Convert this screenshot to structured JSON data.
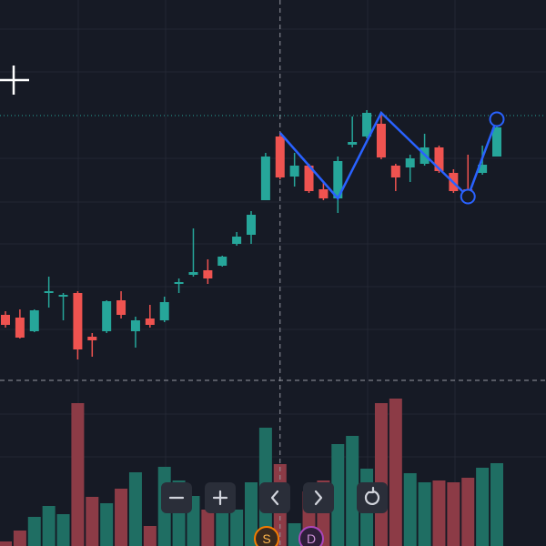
{
  "chart_data": {
    "type": "candlestick",
    "open": [
      254,
      251,
      236,
      278,
      274,
      278,
      230,
      236,
      270,
      236,
      250,
      248,
      288,
      298,
      303,
      308,
      332,
      342,
      380,
      450,
      406,
      418,
      392,
      382,
      441,
      450,
      464,
      418,
      416,
      420,
      438,
      410,
      392,
      410,
      428
    ],
    "high": [
      258,
      260,
      260,
      296,
      278,
      280,
      234,
      270,
      280,
      252,
      265,
      274,
      294,
      349,
      315,
      319,
      345,
      368,
      432,
      454,
      432,
      420,
      400,
      428,
      472,
      479,
      474,
      420,
      430,
      453,
      440,
      414,
      430,
      440,
      470
    ],
    "low": [
      240,
      228,
      235,
      262,
      248,
      205,
      208,
      234,
      250,
      218,
      240,
      246,
      278,
      296,
      288,
      307,
      330,
      332,
      380,
      403,
      395,
      388,
      380,
      366,
      438,
      448,
      425,
      390,
      400,
      418,
      410,
      388,
      382,
      408,
      428
    ],
    "close": [
      243,
      229,
      259,
      280,
      276,
      216,
      226,
      269,
      254,
      248,
      243,
      268,
      290,
      301,
      294,
      318,
      340,
      364,
      428,
      405,
      418,
      390,
      382,
      423,
      444,
      476,
      427,
      405,
      426,
      438,
      412,
      390,
      386,
      419,
      460
    ],
    "volume": [
      5,
      17,
      32,
      44,
      35,
      157,
      54,
      47,
      63,
      81,
      22,
      87,
      72,
      55,
      40,
      60,
      40,
      70,
      130,
      90,
      25,
      60,
      72,
      112,
      121,
      85,
      157,
      162,
      80,
      70,
      72,
      70,
      75,
      86,
      91
    ],
    "up_color": "#26a69a",
    "down_color": "#ef5350",
    "volume_up_color": "#1f6e63",
    "volume_down_color": "#8c3b46",
    "ylim": [
      0,
      600
    ],
    "y2lim": [
      0,
      600
    ],
    "zigzag": {
      "color": "#2962ff",
      "x": [
        19,
        23,
        26,
        32,
        34
      ],
      "y": [
        454,
        382,
        476,
        384,
        469
      ],
      "circled": [
        3,
        4
      ]
    },
    "crosshair": {
      "x": 19,
      "y": 182
    },
    "last_price_line": 473
  },
  "badges": [
    "S",
    "D"
  ]
}
